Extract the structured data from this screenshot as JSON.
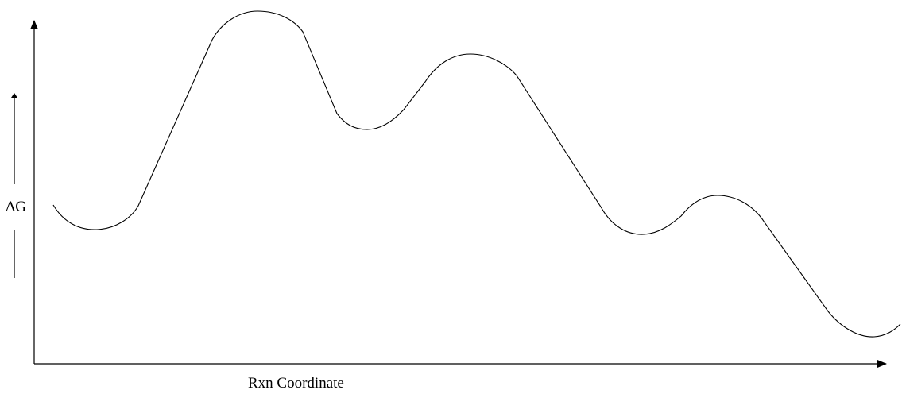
{
  "labels": {
    "y_axis": "ΔG",
    "x_axis": "Rxn Coordinate"
  },
  "colors": {
    "stroke": "#000000",
    "background": "#ffffff"
  }
}
